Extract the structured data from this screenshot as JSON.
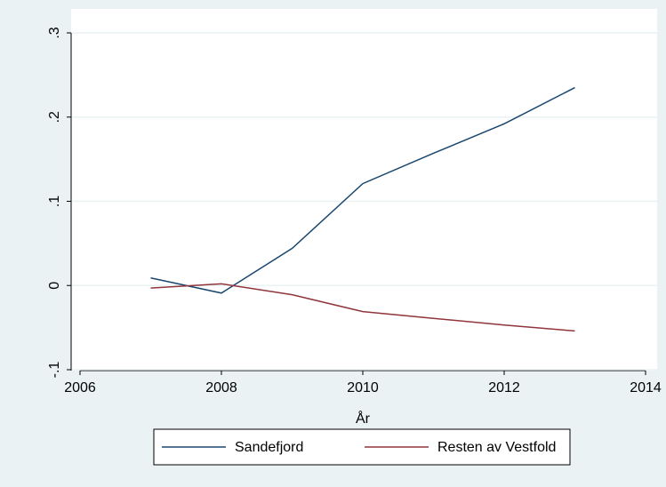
{
  "chart_data": {
    "type": "line",
    "x_label": "År",
    "x": [
      2007,
      2008,
      2009,
      2010,
      2011,
      2012,
      2013
    ],
    "series": [
      {
        "name": "Sandefjord",
        "color": "#1a476f",
        "values": [
          0.009,
          -0.009,
          0.044,
          0.121,
          0.157,
          0.192,
          0.235
        ]
      },
      {
        "name": "Resten av Vestfold",
        "color": "#90353b",
        "values": [
          -0.003,
          0.002,
          -0.011,
          -0.031,
          -0.039,
          -0.047,
          -0.054
        ]
      }
    ],
    "xlim": [
      2006,
      2014
    ],
    "xticks": [
      2006,
      2008,
      2010,
      2012,
      2014
    ],
    "ylim": [
      -0.1,
      0.3
    ],
    "yticks": [
      {
        "value": -0.1,
        "label": "-.1"
      },
      0,
      {
        "value": 0.1,
        "label": ".1"
      },
      {
        "value": 0.2,
        "label": ".2"
      },
      {
        "value": 0.3,
        "label": ".3"
      }
    ],
    "grid": true
  }
}
